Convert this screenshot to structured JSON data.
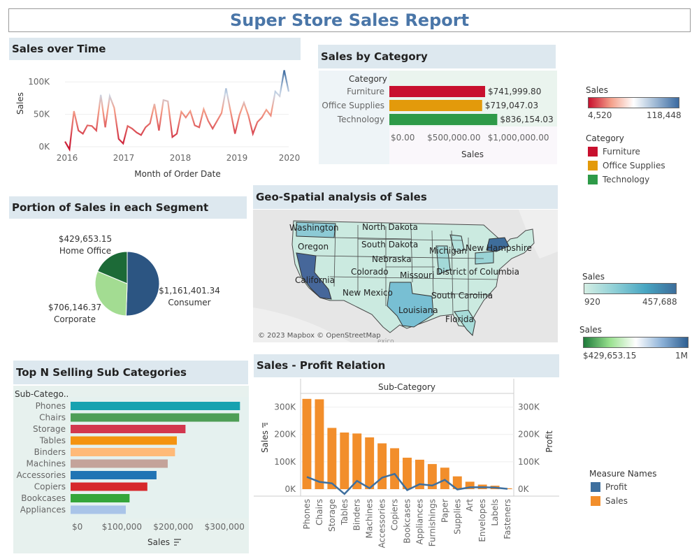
{
  "report_title": "Super Store Sales Report",
  "sections": {
    "sales_over_time": "Sales over Time",
    "sales_by_category": "Sales by Category",
    "segment": "Portion of Sales in each Segment",
    "geo": "Geo-Spatial analysis of Sales",
    "top_n": "Top N Selling Sub Categories",
    "profit_relation": "Sales - Profit Relation"
  },
  "legends": {
    "sales_gradient": {
      "title": "Sales",
      "min": "4,520",
      "max": "118,448",
      "colors": [
        "#c8102e",
        "#f4a08a",
        "#ffffff",
        "#9bb6d3",
        "#3b6aa0"
      ]
    },
    "category": {
      "title": "Category",
      "items": [
        {
          "label": "Furniture",
          "color": "#c8102e"
        },
        {
          "label": "Office Supplies",
          "color": "#e39a0b"
        },
        {
          "label": "Technology",
          "color": "#2e9a48"
        }
      ]
    },
    "map_sales": {
      "title": "Sales",
      "min": "920",
      "max": "457,688",
      "colors": [
        "#d4eee4",
        "#8ecfd6",
        "#48a6c2",
        "#3d6d9b"
      ]
    },
    "segment_sales": {
      "title": "Sales",
      "min": "$429,653.15",
      "max": "1M",
      "colors": [
        "#1e7a3a",
        "#98e08e",
        "#ffffff",
        "#8db2d8",
        "#2e5f91"
      ]
    },
    "measure_names": {
      "title": "Measure Names",
      "items": [
        {
          "label": "Profit",
          "color": "#3e6f9e"
        },
        {
          "label": "Sales",
          "color": "#f28e2b"
        }
      ]
    }
  },
  "map": {
    "labels": [
      "Washington",
      "North Dakota",
      "Oregon",
      "South Dakota",
      "Nebraska",
      "Michigan",
      "New Hampshire",
      "Colorado",
      "Missouri",
      "District of Columbia",
      "California",
      "New Mexico",
      "South Carolina",
      "Louisiana",
      "Florida"
    ],
    "attribution": "© 2023 Mapbox © OpenStreetMap",
    "attribution2": "exico"
  },
  "chart_data": [
    {
      "type": "line",
      "title": "Sales over Time",
      "xlabel": "Month of Order Date",
      "ylabel": "Sales",
      "x_ticks": [
        "2016",
        "2017",
        "2018",
        "2019",
        "2020"
      ],
      "y_ticks": [
        "0K",
        "50K",
        "100K"
      ],
      "ylim": [
        0,
        125000
      ],
      "series": [
        {
          "values": [
            8000,
            -4000,
            55000,
            25000,
            20000,
            33000,
            32000,
            25000,
            80000,
            30000,
            78000,
            60000,
            12000,
            5000,
            32000,
            28000,
            22000,
            18000,
            30000,
            36000,
            66000,
            25000,
            72000,
            70000,
            15000,
            20000,
            54000,
            45000,
            55000,
            33000,
            30000,
            58000,
            40000,
            28000,
            40000,
            52000,
            90000,
            55000,
            20000,
            49000,
            68000,
            48000,
            20000,
            38000,
            45000,
            57000,
            48000,
            85000,
            78000,
            118000,
            85000
          ]
        }
      ]
    },
    {
      "type": "bar",
      "title": "Sales by Category",
      "column_header": "Category",
      "xlabel": "Sales",
      "x_ticks": [
        "$0.00",
        "$500,000.00",
        "$1,000,000.00"
      ],
      "xlim": [
        0,
        1300000
      ],
      "categories": [
        "Furniture",
        "Office Supplies",
        "Technology"
      ],
      "values": [
        741999.8,
        719047.03,
        836154.03
      ],
      "value_labels": [
        "$741,999.80",
        "$719,047.03",
        "$836,154.03"
      ],
      "colors": [
        "#c8102e",
        "#e39a0b",
        "#2e9a48"
      ]
    },
    {
      "type": "pie",
      "title": "Portion of Sales in each Segment",
      "categories": [
        "Consumer",
        "Corporate",
        "Home Office"
      ],
      "values": [
        1161401.34,
        706146.37,
        429653.15
      ],
      "value_labels": [
        "$1,161,401.34",
        "$706,146.37",
        "$429,653.15"
      ],
      "colors": [
        "#2c5582",
        "#a3dc92",
        "#1c6a37"
      ]
    },
    {
      "type": "bar",
      "title": "Top N Selling Sub Categories",
      "column_header": "Sub-Catego..",
      "xlabel": "Sales",
      "x_ticks": [
        "$0",
        "$100,000",
        "$200,000",
        "$300,000"
      ],
      "xlim": [
        0,
        350000
      ],
      "categories": [
        "Phones",
        "Chairs",
        "Storage",
        "Tables",
        "Binders",
        "Machines",
        "Accessories",
        "Copiers",
        "Bookcases",
        "Appliances"
      ],
      "values": [
        330007,
        328449,
        223844,
        206966,
        203413,
        189239,
        167380,
        149528,
        114880,
        107532
      ],
      "colors": [
        "#17a2b0",
        "#4e9e56",
        "#d2374e",
        "#f4930f",
        "#ffba78",
        "#c4a39a",
        "#2174b4",
        "#d6282b",
        "#35a63a",
        "#a9c4e8"
      ]
    },
    {
      "type": "bar",
      "title": "Sales - Profit Relation",
      "column_header": "Sub-Category",
      "ylabel": "Sales",
      "ylabel_right": "Profit",
      "y_ticks": [
        "0K",
        "100K",
        "200K",
        "300K"
      ],
      "ylim": [
        0,
        350000
      ],
      "categories": [
        "Phones",
        "Chairs",
        "Storage",
        "Tables",
        "Binders",
        "Machines",
        "Accessories",
        "Copiers",
        "Bookcases",
        "Appliances",
        "Furnishings",
        "Paper",
        "Supplies",
        "Art",
        "Envelopes",
        "Labels",
        "Fasteners"
      ],
      "series": [
        {
          "name": "Sales",
          "values": [
            330007,
            328449,
            223844,
            206966,
            203413,
            189239,
            167380,
            149528,
            114880,
            107532,
            91705,
            78479,
            46674,
            27119,
            16476,
            12486,
            3024
          ]
        },
        {
          "name": "Profit",
          "values": [
            44516,
            26590,
            21279,
            -17725,
            30222,
            3385,
            41937,
            55618,
            -3473,
            18138,
            13059,
            34054,
            -1189,
            6528,
            6964,
            5546,
            950
          ]
        }
      ]
    }
  ]
}
